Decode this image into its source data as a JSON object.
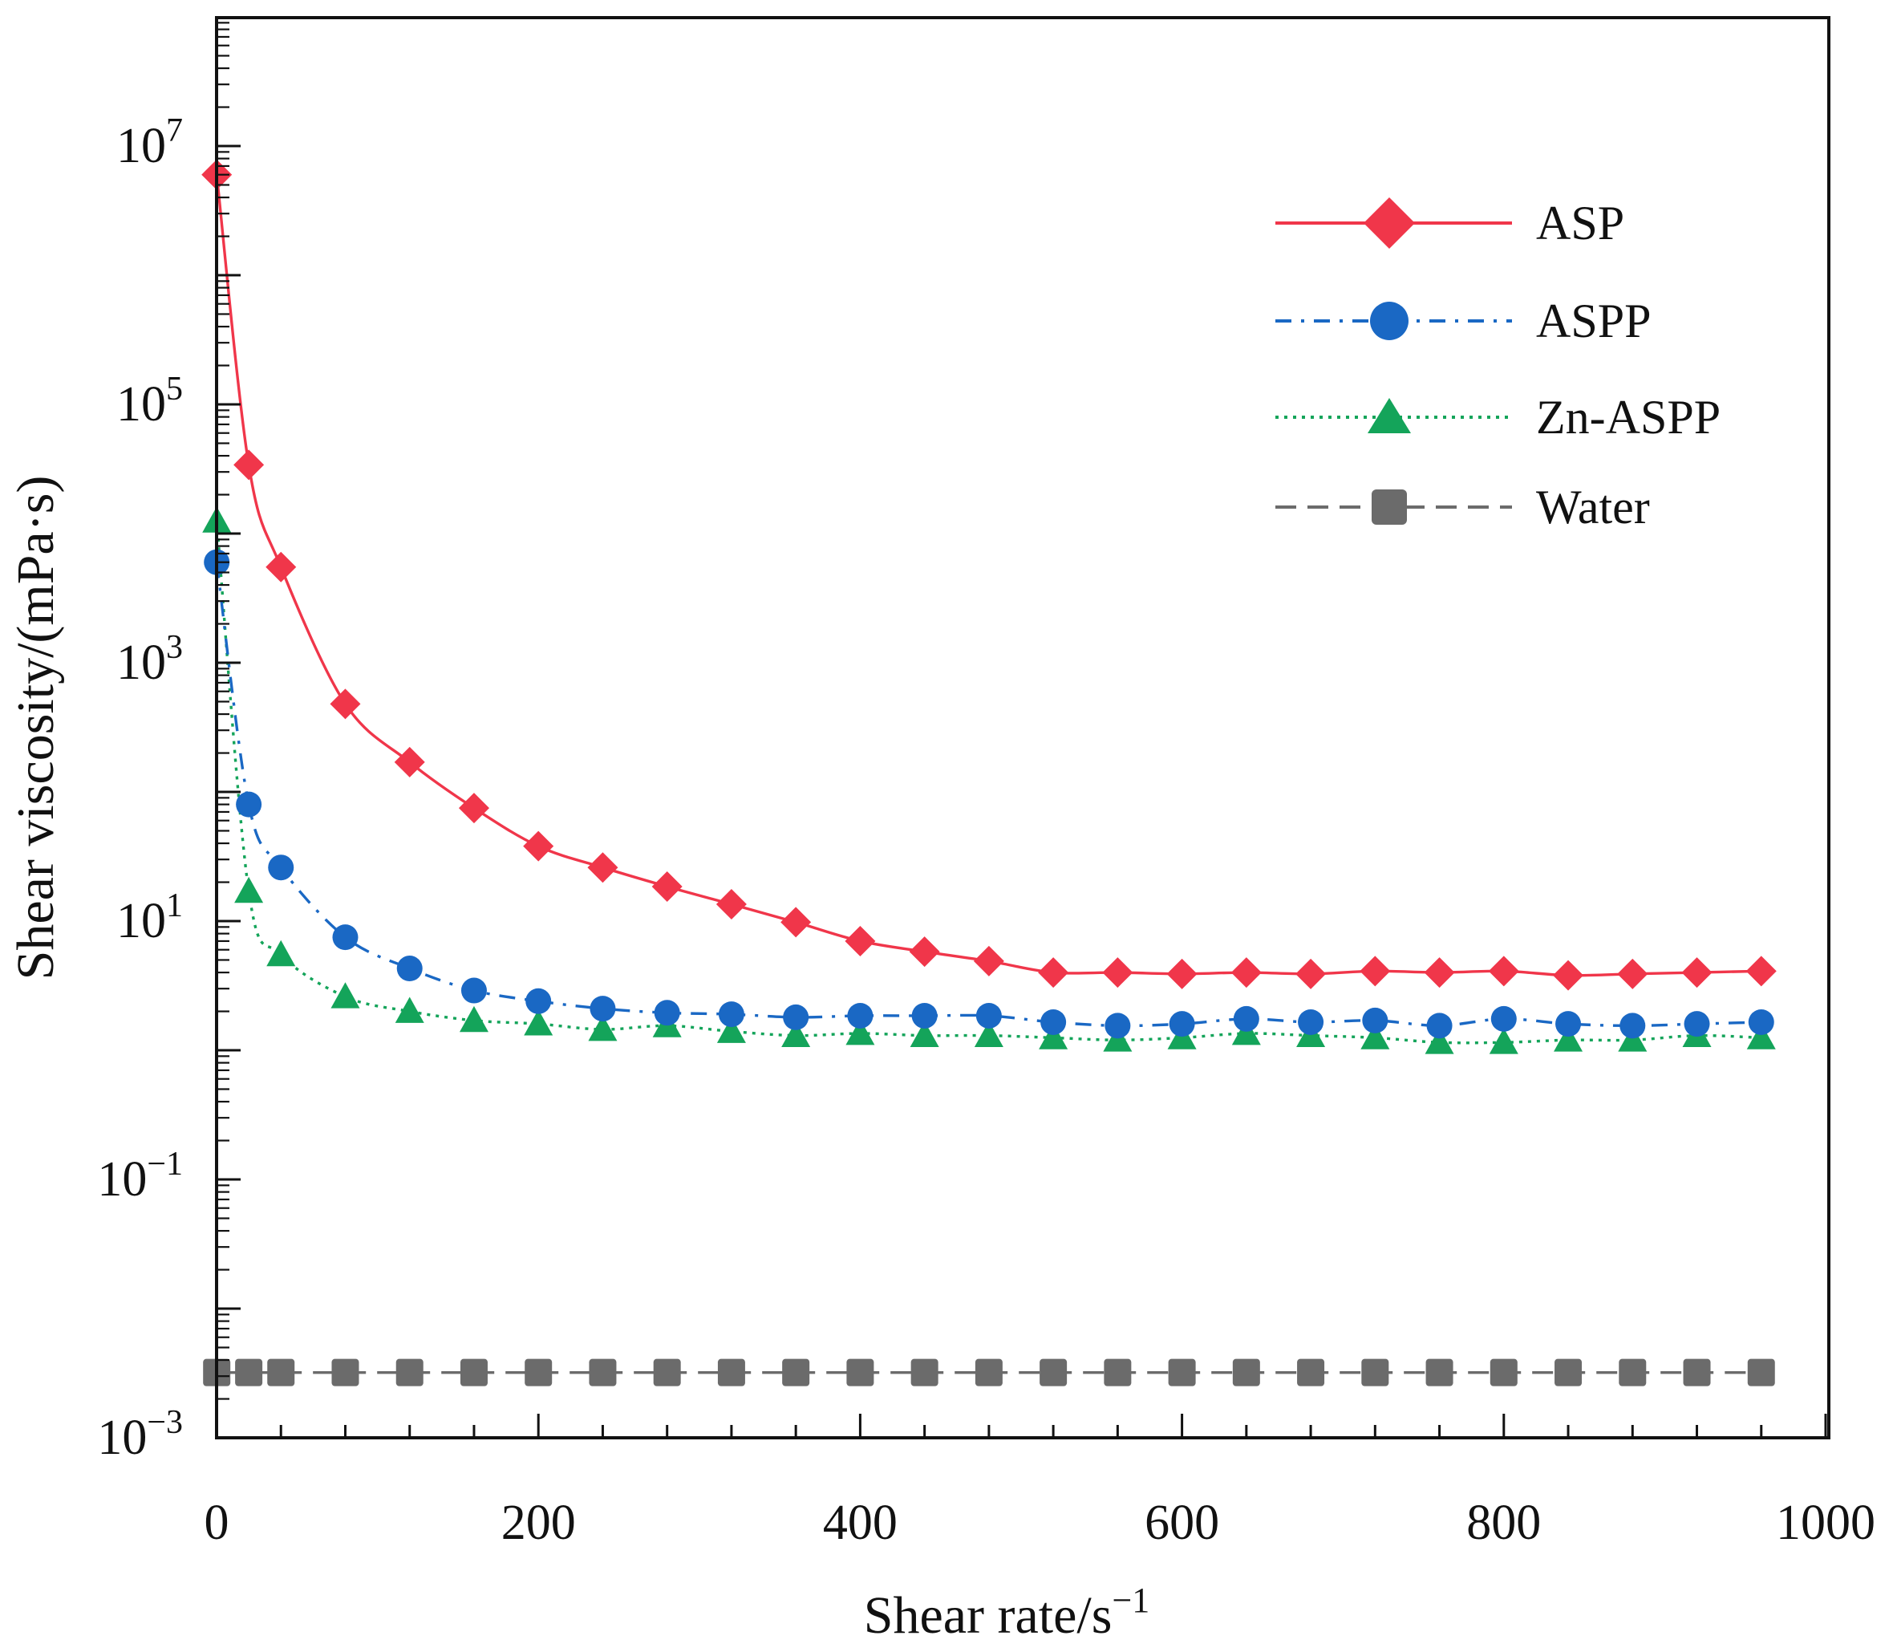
{
  "chart_data": {
    "type": "line",
    "title": "",
    "xlabel": "Shear rate/s",
    "xlabel_superscript": "−1",
    "ylabel": "Shear viscosity/(mPa·s)",
    "yscale": "log",
    "xlim": [
      0,
      1000
    ],
    "ylim": [
      0.001,
      100000000
    ],
    "x_ticks": [
      {
        "value": 0,
        "label": "0"
      },
      {
        "value": 200,
        "label": "200"
      },
      {
        "value": 400,
        "label": "400"
      },
      {
        "value": 600,
        "label": "600"
      },
      {
        "value": 800,
        "label": "800"
      },
      {
        "value": 1000,
        "label": "1000"
      }
    ],
    "y_ticks": [
      {
        "value": 0.001,
        "base": "10",
        "exp": "−3"
      },
      {
        "value": 0.1,
        "base": "10",
        "exp": "−1"
      },
      {
        "value": 10,
        "base": "10",
        "exp": "1"
      },
      {
        "value": 1000,
        "base": "10",
        "exp": "3"
      },
      {
        "value": 100000,
        "base": "10",
        "exp": "5"
      },
      {
        "value": 10000000,
        "base": "10",
        "exp": "7"
      }
    ],
    "legend_position": "top-right",
    "x": [
      0.1,
      20,
      40,
      80,
      120,
      160,
      200,
      240,
      280,
      320,
      360,
      400,
      440,
      480,
      520,
      560,
      600,
      640,
      680,
      720,
      760,
      800,
      840,
      880,
      920,
      960
    ],
    "series": [
      {
        "name": "ASP",
        "color": "#f0364a",
        "marker": "diamond",
        "line_style": "solid",
        "values": [
          6000000,
          34000,
          5500,
          480,
          170,
          75,
          38,
          26,
          18.5,
          13.5,
          9.8,
          7.0,
          5.8,
          4.9,
          4.0,
          4.0,
          3.9,
          4.0,
          3.9,
          4.1,
          4.0,
          4.1,
          3.8,
          3.9,
          4.0,
          4.1
        ]
      },
      {
        "name": "ASPP",
        "color": "#1a68c4",
        "marker": "circle",
        "line_style": "dashdot",
        "values": [
          6000,
          80,
          26,
          7.5,
          4.3,
          2.9,
          2.4,
          2.1,
          1.95,
          1.9,
          1.8,
          1.85,
          1.85,
          1.85,
          1.65,
          1.55,
          1.6,
          1.75,
          1.65,
          1.7,
          1.55,
          1.75,
          1.6,
          1.55,
          1.6,
          1.65
        ]
      },
      {
        "name": "Zn-ASPP",
        "color": "#14a45a",
        "marker": "triangle",
        "line_style": "dotted",
        "values": [
          12500,
          17,
          5.5,
          2.6,
          2.0,
          1.7,
          1.6,
          1.45,
          1.55,
          1.4,
          1.3,
          1.35,
          1.3,
          1.3,
          1.25,
          1.2,
          1.25,
          1.35,
          1.3,
          1.25,
          1.15,
          1.15,
          1.2,
          1.2,
          1.3,
          1.25
        ]
      },
      {
        "name": "Water",
        "color": "#6b6b6b",
        "marker": "square",
        "line_style": "dashed",
        "values": [
          0.0032,
          0.0032,
          0.0032,
          0.0032,
          0.0032,
          0.0032,
          0.0032,
          0.0032,
          0.0032,
          0.0032,
          0.0032,
          0.0032,
          0.0032,
          0.0032,
          0.0032,
          0.0032,
          0.0032,
          0.0032,
          0.0032,
          0.0032,
          0.0032,
          0.0032,
          0.0032,
          0.0032,
          0.0032,
          0.0032
        ]
      }
    ]
  }
}
